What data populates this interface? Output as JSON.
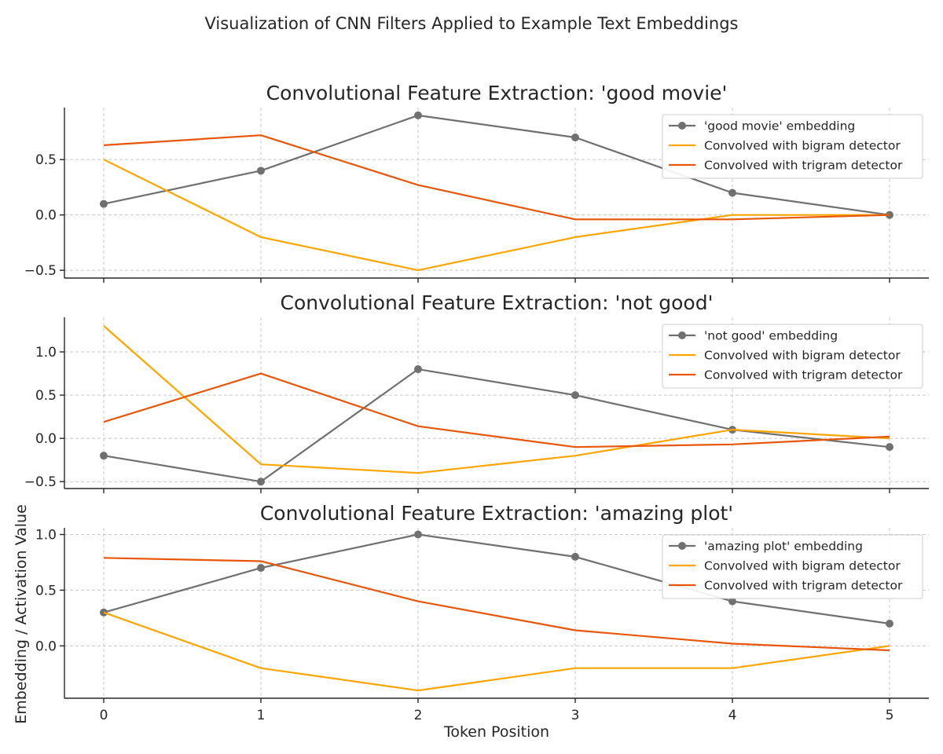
{
  "figure": {
    "suptitle": "Visualization of CNN Filters Applied to Example Text Embeddings",
    "xlabel": "Token Position",
    "ylabel": "Embedding / Activation Value"
  },
  "colors": {
    "embedding": "#707070",
    "bigram": "#FFA500",
    "trigram": "#E8560A"
  },
  "chart_data": [
    {
      "type": "line",
      "title": "Convolutional Feature Extraction: 'good movie'",
      "x": [
        0,
        1,
        2,
        3,
        4,
        5
      ],
      "xticks": [
        0,
        1,
        2,
        3,
        4,
        5
      ],
      "ylim": [
        -0.57,
        0.97
      ],
      "yticks": [
        -0.5,
        0.0,
        0.5
      ],
      "ytick_labels": [
        "−0.5",
        "0.0",
        "0.5"
      ],
      "grid": true,
      "legend_position": "top-right",
      "series": [
        {
          "name": "'good movie' embedding",
          "values": [
            0.1,
            0.4,
            0.9,
            0.7,
            0.2,
            0.0
          ],
          "marker": "circle",
          "color": "#707070"
        },
        {
          "name": "Convolved with bigram detector",
          "values": [
            0.5,
            -0.2,
            -0.5,
            -0.2,
            0.0,
            0.0
          ],
          "color": "#FFA500"
        },
        {
          "name": "Convolved with trigram detector",
          "values": [
            0.63,
            0.72,
            0.27,
            -0.04,
            -0.04,
            0.0
          ],
          "color": "#E8560A"
        }
      ]
    },
    {
      "type": "line",
      "title": "Convolutional Feature Extraction: 'not good'",
      "x": [
        0,
        1,
        2,
        3,
        4,
        5
      ],
      "xticks": [
        0,
        1,
        2,
        3,
        4,
        5
      ],
      "ylim": [
        -0.58,
        1.4
      ],
      "yticks": [
        -0.5,
        0.0,
        0.5,
        1.0
      ],
      "ytick_labels": [
        "−0.5",
        "0.0",
        "0.5",
        "1.0"
      ],
      "grid": true,
      "legend_position": "top-right",
      "series": [
        {
          "name": "'not good' embedding",
          "values": [
            -0.2,
            -0.5,
            0.8,
            0.5,
            0.1,
            -0.1
          ],
          "marker": "circle",
          "color": "#707070"
        },
        {
          "name": "Convolved with bigram detector",
          "values": [
            1.3,
            -0.3,
            -0.4,
            -0.2,
            0.1,
            0.0
          ],
          "color": "#FFA500"
        },
        {
          "name": "Convolved with trigram detector",
          "values": [
            0.19,
            0.75,
            0.14,
            -0.1,
            -0.07,
            0.02
          ],
          "color": "#E8560A"
        }
      ]
    },
    {
      "type": "line",
      "title": "Convolutional Feature Extraction: 'amazing plot'",
      "x": [
        0,
        1,
        2,
        3,
        4,
        5
      ],
      "xticks": [
        0,
        1,
        2,
        3,
        4,
        5
      ],
      "ylim": [
        -0.47,
        1.06
      ],
      "yticks": [
        0.0,
        0.5,
        1.0
      ],
      "ytick_labels": [
        "0.0",
        "0.5",
        "1.0"
      ],
      "grid": true,
      "legend_position": "top-right",
      "series": [
        {
          "name": "'amazing plot' embedding",
          "values": [
            0.3,
            0.7,
            1.0,
            0.8,
            0.4,
            0.2
          ],
          "marker": "circle",
          "color": "#707070"
        },
        {
          "name": "Convolved with bigram detector",
          "values": [
            0.3,
            -0.2,
            -0.4,
            -0.2,
            -0.2,
            0.0
          ],
          "color": "#FFA500"
        },
        {
          "name": "Convolved with trigram detector",
          "values": [
            0.79,
            0.76,
            0.4,
            0.14,
            0.02,
            -0.04
          ],
          "color": "#E8560A"
        }
      ]
    }
  ]
}
